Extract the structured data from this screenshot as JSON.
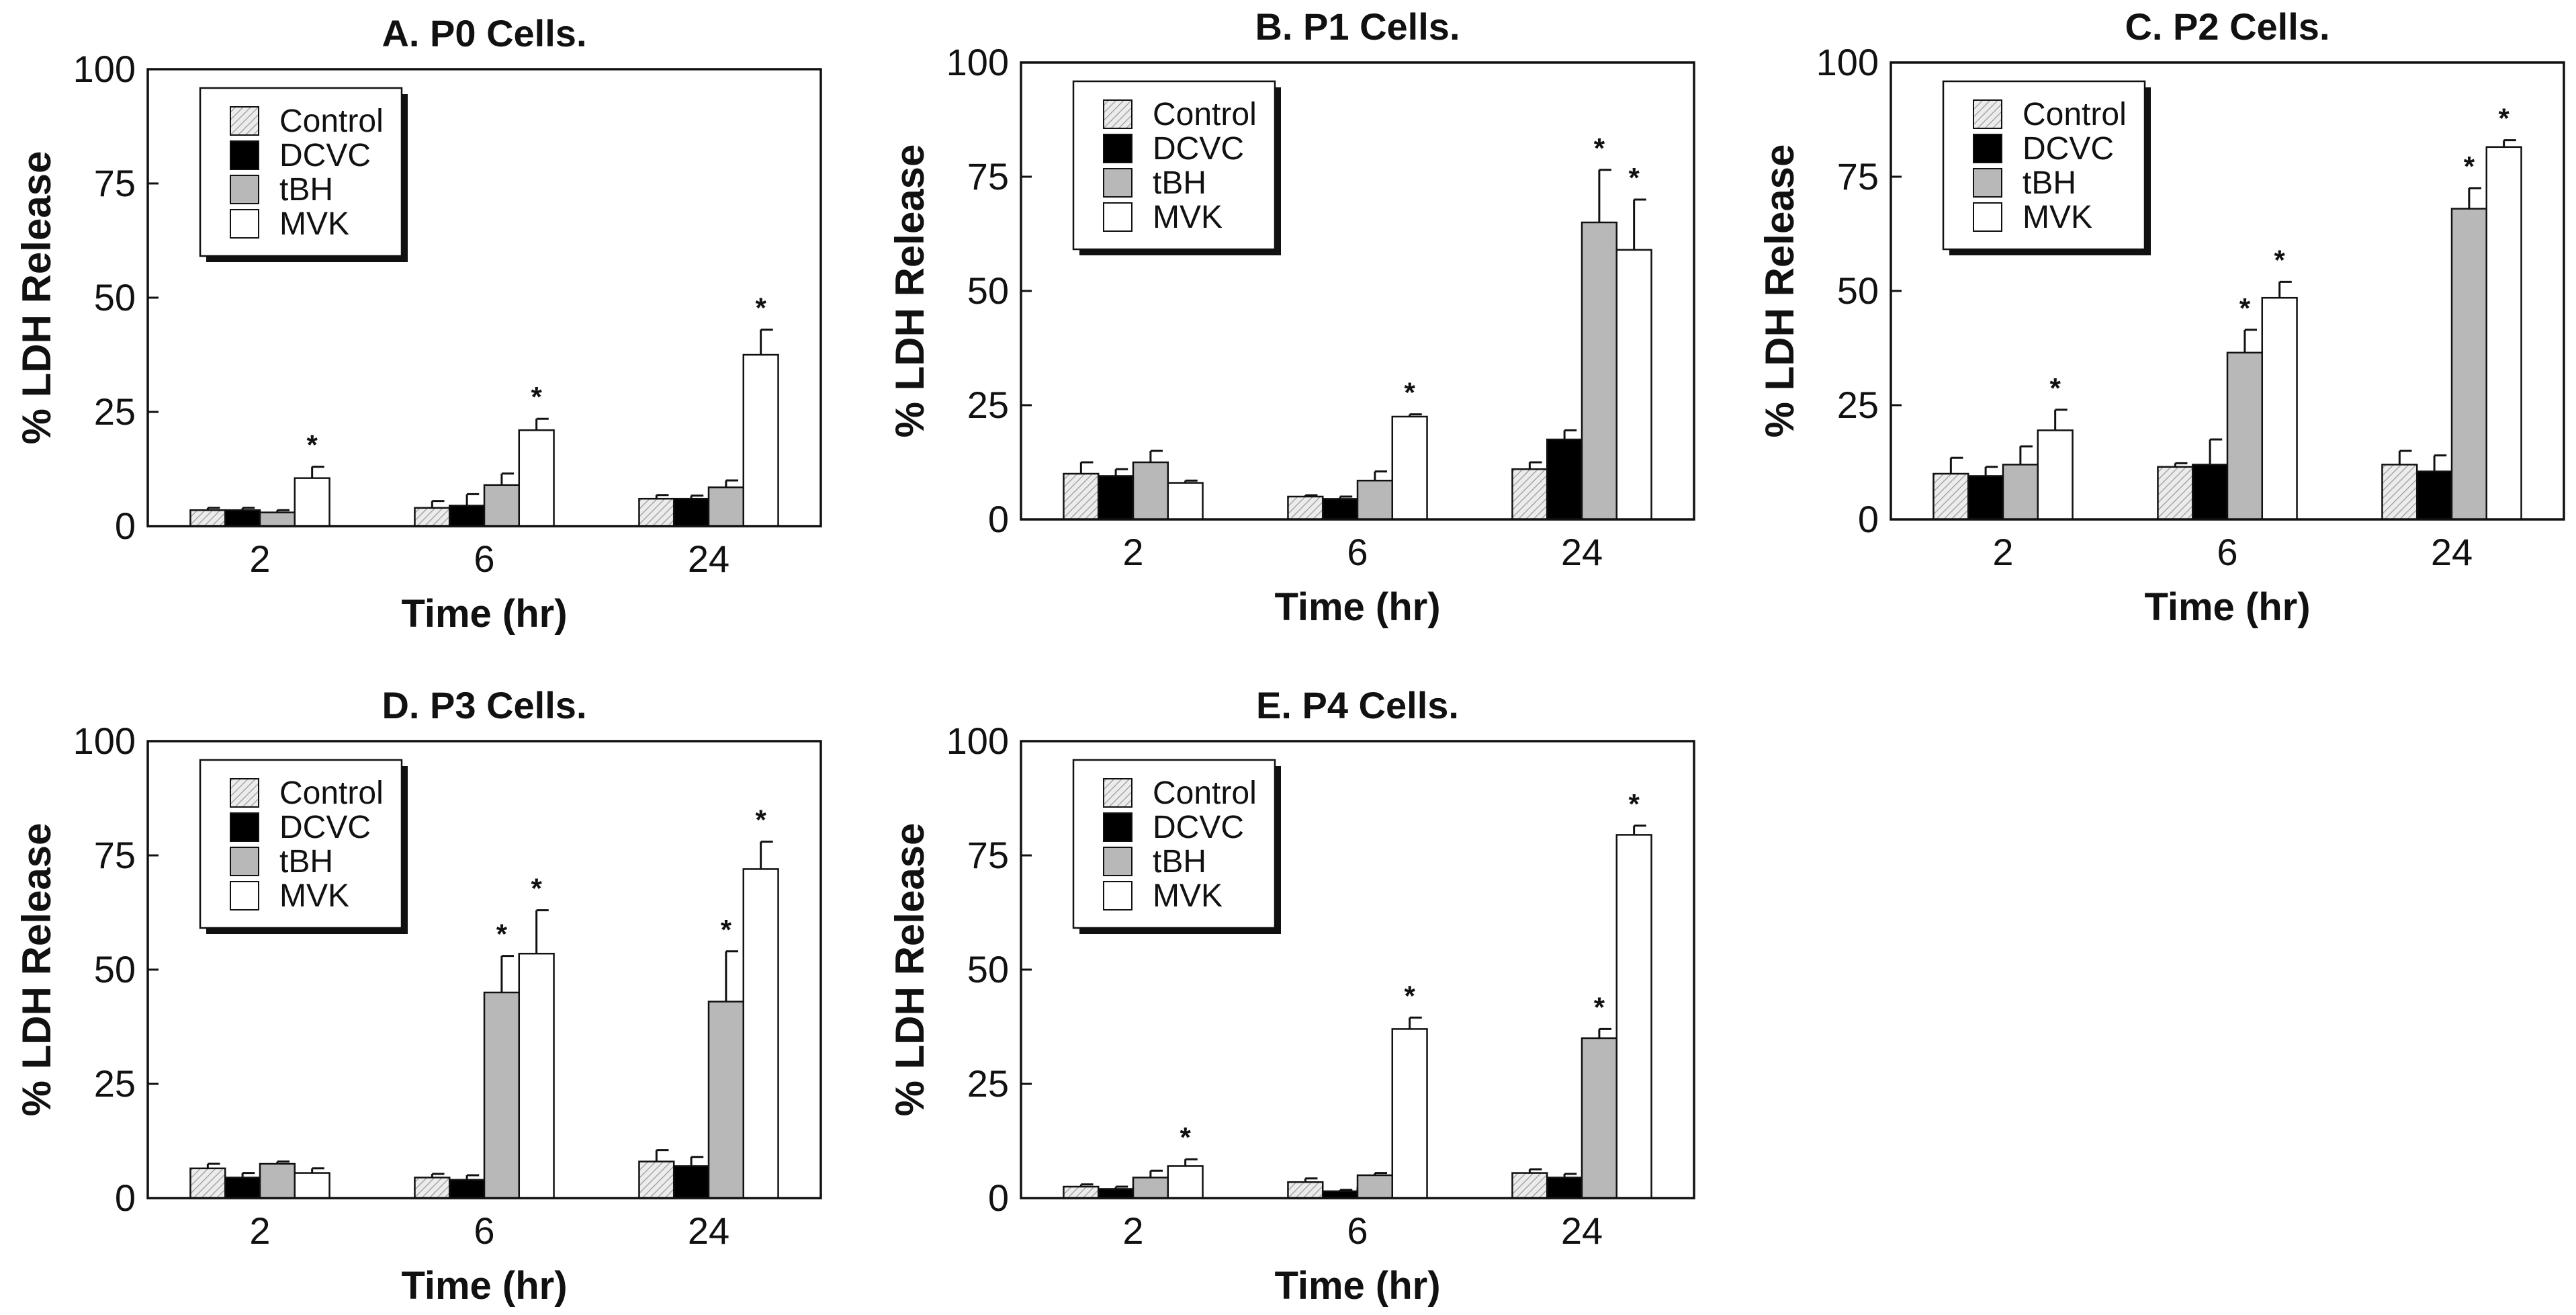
{
  "colors": {
    "Control": "#e6e6e6",
    "DCVC": "#000000",
    "tBH": "#b8b8b8",
    "MVK": "#ffffff",
    "axis": "#111111"
  },
  "chart_data": [
    {
      "type": "bar",
      "title": "A. P0 Cells.",
      "xlabel": "Time (hr)",
      "ylabel": "% LDH Release",
      "ylim": [
        0,
        100
      ],
      "yticks": [
        "0",
        "25",
        "50",
        "75",
        "100"
      ],
      "categories": [
        "2",
        "6",
        "24"
      ],
      "legend": [
        "Control",
        "DCVC",
        "tBH",
        "MVK"
      ],
      "series": [
        {
          "name": "Control",
          "values": [
            3.5,
            4.0,
            6.0
          ],
          "errors": [
            0.5,
            1.5,
            0.8
          ],
          "sig": [
            false,
            false,
            false
          ]
        },
        {
          "name": "DCVC",
          "values": [
            3.5,
            4.5,
            6.0
          ],
          "errors": [
            0.5,
            2.5,
            0.7
          ],
          "sig": [
            false,
            false,
            false
          ]
        },
        {
          "name": "tBH",
          "values": [
            3.0,
            9.0,
            8.5
          ],
          "errors": [
            0.5,
            2.5,
            1.5
          ],
          "sig": [
            false,
            false,
            false
          ]
        },
        {
          "name": "MVK",
          "values": [
            10.5,
            21.0,
            37.5
          ],
          "errors": [
            2.5,
            2.5,
            5.5
          ],
          "sig": [
            true,
            true,
            true
          ]
        }
      ]
    },
    {
      "type": "bar",
      "title": "B. P1 Cells.",
      "xlabel": "Time (hr)",
      "ylabel": "% LDH Release",
      "ylim": [
        0,
        100
      ],
      "yticks": [
        "0",
        "25",
        "50",
        "75",
        "100"
      ],
      "categories": [
        "2",
        "6",
        "24"
      ],
      "legend": [
        "Control",
        "DCVC",
        "tBH",
        "MVK"
      ],
      "series": [
        {
          "name": "Control",
          "values": [
            10.0,
            5.0,
            11.0
          ],
          "errors": [
            2.5,
            0.3,
            1.5
          ],
          "sig": [
            false,
            false,
            false
          ]
        },
        {
          "name": "DCVC",
          "values": [
            9.5,
            4.5,
            17.5
          ],
          "errors": [
            1.5,
            0.5,
            2.0
          ],
          "sig": [
            false,
            false,
            false
          ]
        },
        {
          "name": "tBH",
          "values": [
            12.5,
            8.5,
            65.0
          ],
          "errors": [
            2.5,
            2.0,
            11.5
          ],
          "sig": [
            false,
            false,
            true
          ]
        },
        {
          "name": "MVK",
          "values": [
            8.0,
            22.5,
            59.0
          ],
          "errors": [
            0.5,
            0.5,
            11.0
          ],
          "sig": [
            false,
            true,
            true
          ]
        }
      ]
    },
    {
      "type": "bar",
      "title": "C. P2 Cells.",
      "xlabel": "Time (hr)",
      "ylabel": "% LDH Release",
      "ylim": [
        0,
        100
      ],
      "yticks": [
        "0",
        "25",
        "50",
        "75",
        "100"
      ],
      "categories": [
        "2",
        "6",
        "24"
      ],
      "legend": [
        "Control",
        "DCVC",
        "tBH",
        "MVK"
      ],
      "series": [
        {
          "name": "Control",
          "values": [
            10.0,
            11.5,
            12.0
          ],
          "errors": [
            3.5,
            0.8,
            3.0
          ],
          "sig": [
            false,
            false,
            false
          ]
        },
        {
          "name": "DCVC",
          "values": [
            9.5,
            12.0,
            10.5
          ],
          "errors": [
            2.0,
            5.5,
            3.5
          ],
          "sig": [
            false,
            false,
            false
          ]
        },
        {
          "name": "tBH",
          "values": [
            12.0,
            36.5,
            68.0
          ],
          "errors": [
            4.0,
            5.0,
            4.5
          ],
          "sig": [
            false,
            true,
            true
          ]
        },
        {
          "name": "MVK",
          "values": [
            19.5,
            48.5,
            81.5
          ],
          "errors": [
            4.5,
            3.5,
            1.5
          ],
          "sig": [
            true,
            true,
            true
          ]
        }
      ]
    },
    {
      "type": "bar",
      "title": "D. P3 Cells.",
      "xlabel": "Time (hr)",
      "ylabel": "% LDH Release",
      "ylim": [
        0,
        100
      ],
      "yticks": [
        "0",
        "25",
        "50",
        "75",
        "100"
      ],
      "categories": [
        "2",
        "6",
        "24"
      ],
      "legend": [
        "Control",
        "DCVC",
        "tBH",
        "MVK"
      ],
      "series": [
        {
          "name": "Control",
          "values": [
            6.5,
            4.5,
            8.0
          ],
          "errors": [
            1.0,
            0.8,
            2.5
          ],
          "sig": [
            false,
            false,
            false
          ]
        },
        {
          "name": "DCVC",
          "values": [
            4.5,
            4.0,
            7.0
          ],
          "errors": [
            1.0,
            1.0,
            2.0
          ],
          "sig": [
            false,
            false,
            false
          ]
        },
        {
          "name": "tBH",
          "values": [
            7.5,
            45.0,
            43.0
          ],
          "errors": [
            0.5,
            8.0,
            11.0
          ],
          "sig": [
            false,
            true,
            true
          ]
        },
        {
          "name": "MVK",
          "values": [
            5.5,
            53.5,
            72.0
          ],
          "errors": [
            1.0,
            9.5,
            6.0
          ],
          "sig": [
            false,
            true,
            true
          ]
        }
      ]
    },
    {
      "type": "bar",
      "title": "E. P4 Cells.",
      "xlabel": "Time (hr)",
      "ylabel": "% LDH Release",
      "ylim": [
        0,
        100
      ],
      "yticks": [
        "0",
        "25",
        "50",
        "75",
        "100"
      ],
      "categories": [
        "2",
        "6",
        "24"
      ],
      "legend": [
        "Control",
        "DCVC",
        "tBH",
        "MVK"
      ],
      "series": [
        {
          "name": "Control",
          "values": [
            2.5,
            3.5,
            5.5
          ],
          "errors": [
            0.5,
            0.8,
            0.8
          ],
          "sig": [
            false,
            false,
            false
          ]
        },
        {
          "name": "DCVC",
          "values": [
            2.0,
            1.5,
            4.5
          ],
          "errors": [
            0.5,
            0.3,
            0.8
          ],
          "sig": [
            false,
            false,
            false
          ]
        },
        {
          "name": "tBH",
          "values": [
            4.5,
            5.0,
            35.0
          ],
          "errors": [
            1.5,
            0.5,
            2.0
          ],
          "sig": [
            false,
            false,
            true
          ]
        },
        {
          "name": "MVK",
          "values": [
            7.0,
            37.0,
            79.5
          ],
          "errors": [
            1.5,
            2.5,
            2.0
          ],
          "sig": [
            true,
            true,
            true
          ]
        }
      ]
    }
  ]
}
